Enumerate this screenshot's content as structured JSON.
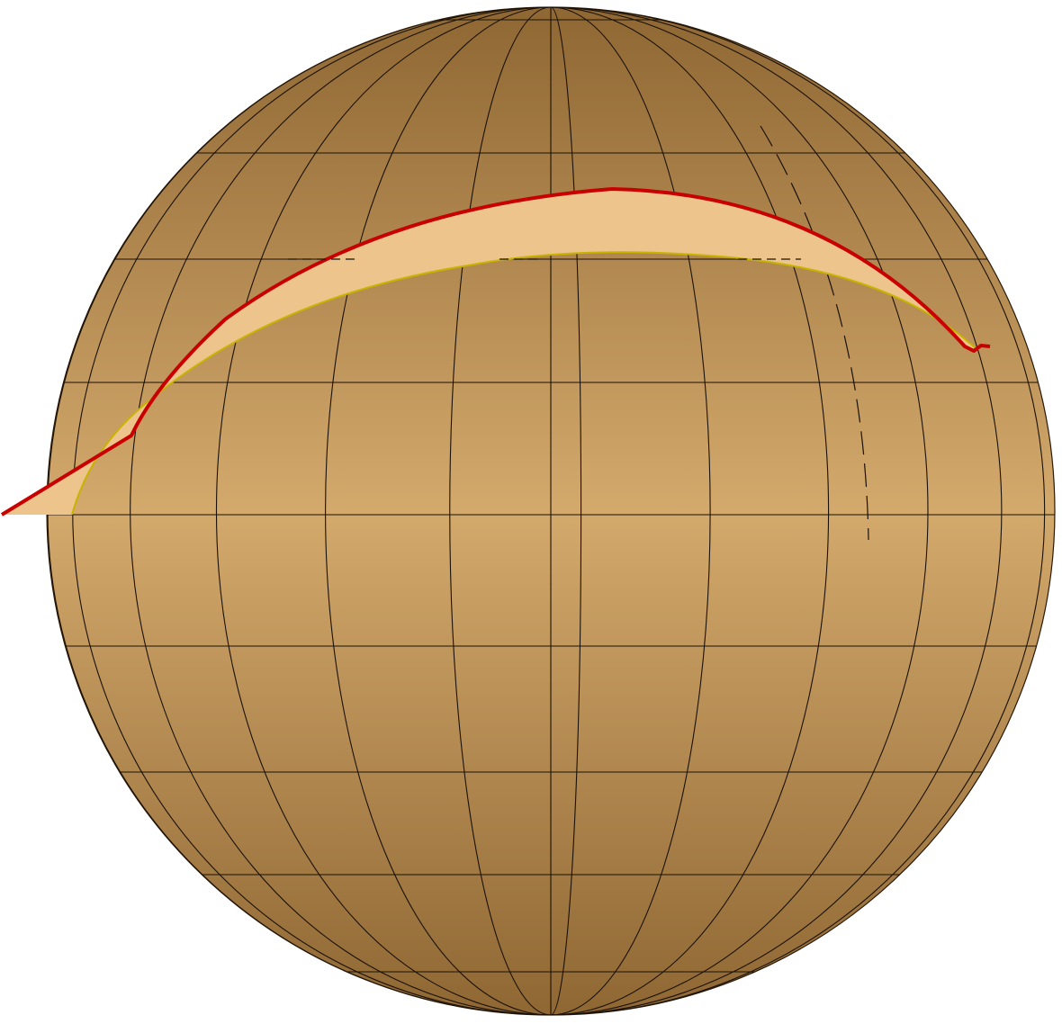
{
  "diagram": {
    "type": "globe-with-band",
    "colors": {
      "sphere_light": "#d3a96c",
      "sphere_dark": "#8f6733",
      "grid": "#1a1108",
      "band_fill": "#ecc48c",
      "band_edge_upper": "#c80000",
      "band_edge_lower": "#c8b400",
      "background": "#ffffff"
    },
    "meridian_count": 24,
    "parallel_count": 7
  }
}
